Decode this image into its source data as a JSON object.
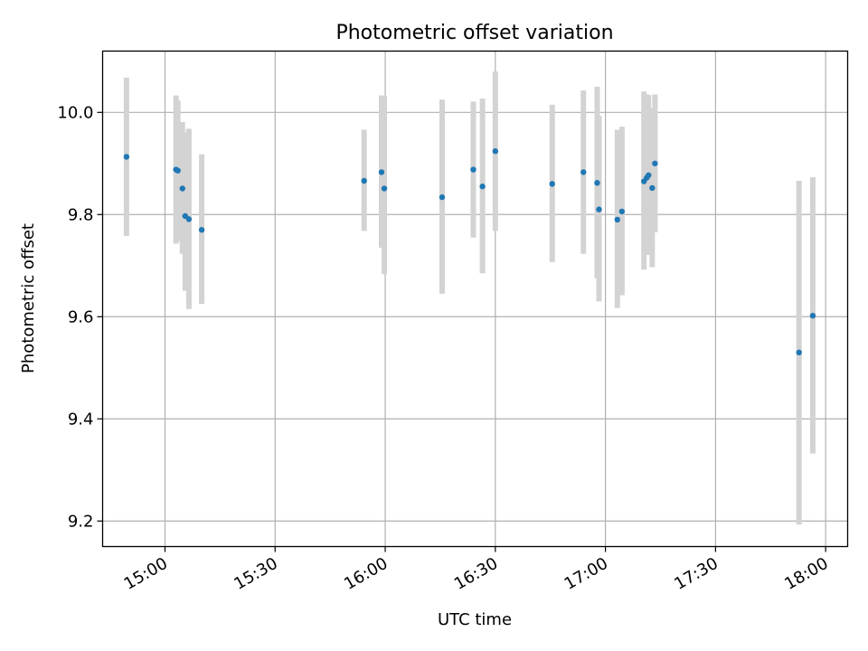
{
  "chart_data": {
    "type": "scatter",
    "title": "Photometric offset variation",
    "xlabel": "UTC time",
    "ylabel": "Photometric offset",
    "x_is_time": true,
    "xlim": [
      "14:43",
      "18:06"
    ],
    "ylim": [
      9.15,
      10.12
    ],
    "grid": true,
    "x_ticks": [
      "15:00",
      "15:30",
      "16:00",
      "16:30",
      "17:00",
      "17:30",
      "18:00"
    ],
    "y_ticks": [
      "9.2",
      "9.4",
      "9.6",
      "9.8",
      "10.0"
    ],
    "colors": {
      "point": "#1f77b4",
      "errorbar": "#d3d3d3",
      "grid": "#b0b0b0"
    },
    "points": [
      {
        "x": "14:49:30",
        "y": 9.913,
        "lo": 9.758,
        "hi": 10.068
      },
      {
        "x": "15:03:00",
        "y": 9.888,
        "lo": 9.743,
        "hi": 10.033
      },
      {
        "x": "15:03:30",
        "y": 9.886,
        "lo": 9.748,
        "hi": 10.023
      },
      {
        "x": "15:04:45",
        "y": 9.851,
        "lo": 9.723,
        "hi": 9.981
      },
      {
        "x": "15:05:30",
        "y": 9.797,
        "lo": 9.651,
        "hi": 9.961
      },
      {
        "x": "15:06:30",
        "y": 9.791,
        "lo": 9.615,
        "hi": 9.968
      },
      {
        "x": "15:10:00",
        "y": 9.77,
        "lo": 9.625,
        "hi": 9.918
      },
      {
        "x": "15:54:15",
        "y": 9.866,
        "lo": 9.768,
        "hi": 9.966
      },
      {
        "x": "15:59:00",
        "y": 9.883,
        "lo": 9.735,
        "hi": 10.033
      },
      {
        "x": "15:59:45",
        "y": 9.851,
        "lo": 9.683,
        "hi": 10.031
      },
      {
        "x": "16:15:30",
        "y": 9.834,
        "lo": 9.645,
        "hi": 10.025
      },
      {
        "x": "16:24:00",
        "y": 9.888,
        "lo": 9.755,
        "hi": 10.021
      },
      {
        "x": "16:26:30",
        "y": 9.855,
        "lo": 9.685,
        "hi": 10.027
      },
      {
        "x": "16:30:00",
        "y": 9.924,
        "lo": 9.768,
        "hi": 10.08
      },
      {
        "x": "16:45:30",
        "y": 9.86,
        "lo": 9.707,
        "hi": 10.015
      },
      {
        "x": "16:54:00",
        "y": 9.883,
        "lo": 9.723,
        "hi": 10.043
      },
      {
        "x": "16:57:45",
        "y": 9.862,
        "lo": 9.675,
        "hi": 10.05
      },
      {
        "x": "16:58:15",
        "y": 9.81,
        "lo": 9.63,
        "hi": 9.993
      },
      {
        "x": "17:03:15",
        "y": 9.79,
        "lo": 9.617,
        "hi": 9.966
      },
      {
        "x": "17:04:30",
        "y": 9.806,
        "lo": 9.642,
        "hi": 9.972
      },
      {
        "x": "17:10:30",
        "y": 9.865,
        "lo": 9.692,
        "hi": 10.041
      },
      {
        "x": "17:11:15",
        "y": 9.872,
        "lo": 9.722,
        "hi": 10.035
      },
      {
        "x": "17:11:45",
        "y": 9.877,
        "lo": 9.721,
        "hi": 10.034
      },
      {
        "x": "17:12:45",
        "y": 9.852,
        "lo": 9.697,
        "hi": 10.008
      },
      {
        "x": "17:13:30",
        "y": 9.9,
        "lo": 9.765,
        "hi": 10.035
      },
      {
        "x": "17:52:45",
        "y": 9.53,
        "lo": 9.193,
        "hi": 9.866
      },
      {
        "x": "17:56:30",
        "y": 9.602,
        "lo": 9.332,
        "hi": 9.873
      }
    ]
  }
}
